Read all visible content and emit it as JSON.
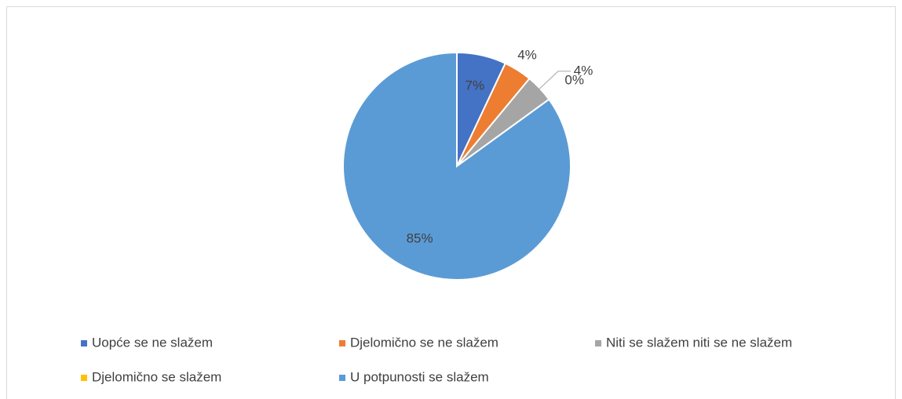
{
  "chart_data": {
    "type": "pie",
    "categories": [
      "Uopće se ne slažem",
      "Djelomično se ne slažem",
      "Niti se slažem niti se ne slažem",
      "Djelomično se slažem",
      "U potpunosti se slažem"
    ],
    "values": [
      7,
      4,
      4,
      0,
      85
    ],
    "value_labels": [
      "7%",
      "4%",
      "4%",
      "0%",
      "85%"
    ],
    "colors": [
      "#4472c4",
      "#ed7d31",
      "#a5a5a5",
      "#ffc000",
      "#5b9bd5"
    ],
    "legend": "bottom"
  }
}
